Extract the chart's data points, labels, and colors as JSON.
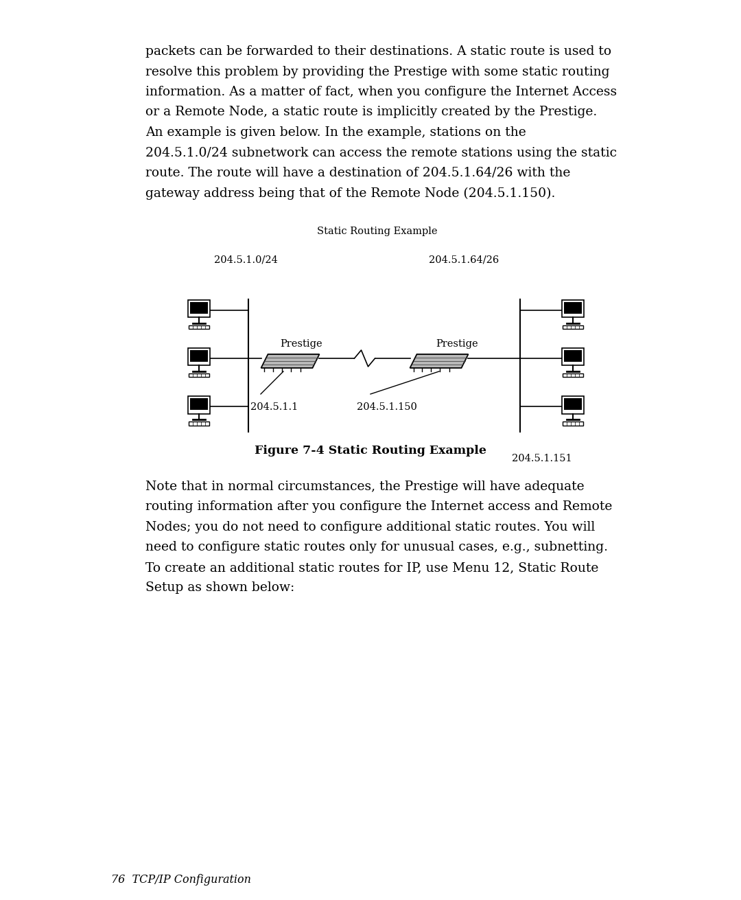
{
  "bg_color": "#ffffff",
  "page_width": 10.8,
  "page_height": 13.11,
  "top_paragraph": "packets can be forwarded to their destinations. A static route is used to\nresolve this problem by providing the Prestige with some static routing\ninformation. As a matter of fact, when you configure the Internet Access\nor a Remote Node, a static route is implicitly created by the Prestige.\nAn example is given below. In the example, stations on the\n204.5.1.0/24 subnetwork can access the remote stations using the static\nroute. The route will have a destination of 204.5.1.64/26 with the\ngateway address being that of the Remote Node (204.5.1.150).",
  "diagram_title": "Static Routing Example",
  "left_subnet": "204.5.1.0/24",
  "right_subnet": "204.5.1.64/26",
  "left_ip": "204.5.1.1",
  "right_ip": "204.5.1.150",
  "right_bottom_ip": "204.5.1.151",
  "left_label": "Prestige",
  "right_label": "Prestige",
  "figure_caption": "Figure 7-4 Static Routing Example",
  "bottom_paragraph": "Note that in normal circumstances, the Prestige will have adequate\nrouting information after you configure the Internet access and Remote\nNodes; you do not need to configure additional static routes. You will\nneed to configure static routes only for unusual cases, e.g., subnetting.\nTo create an additional static routes for IP, use Menu 12, Static Route\nSetup as shown below:",
  "footer_text": "76  TCP/IP Configuration",
  "text_color": "#000000",
  "body_fontsize": 13.5,
  "small_fontsize": 10.5,
  "caption_fontsize": 12.5,
  "footer_fontsize": 11.5
}
